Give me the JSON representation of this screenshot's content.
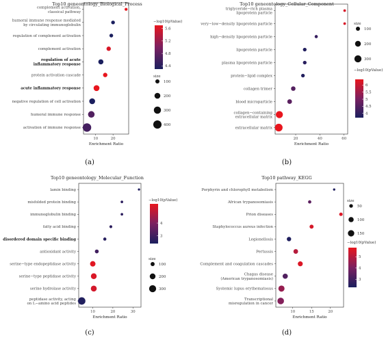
{
  "chart_data": [
    {
      "type": "scatter",
      "title": "Top10 geneontology_Biological_Process",
      "xlabel": "Enrichment Ratio",
      "caption": "(a)",
      "xlim": [
        3,
        29
      ],
      "xticks": [
        10,
        20
      ],
      "categories": [
        "complement activation, classical pathway",
        "humoral immune response mediated by circulating immunoglobulin",
        "regulation of complement activation",
        "complement activation",
        "regulation of acute inflammatory response",
        "protein activation cascade",
        "acute inflammatory response",
        "negative regulation of cell activation",
        "humoral immune response",
        "activation of immune response"
      ],
      "bold_categories": [
        "regulation of acute inflammatory response",
        "acute inflammatory response"
      ],
      "x": [
        27.5,
        20.0,
        19.0,
        17.5,
        13.0,
        15.5,
        10.5,
        8.0,
        7.5,
        5.0
      ],
      "size": [
        50,
        80,
        80,
        110,
        150,
        110,
        200,
        200,
        250,
        420
      ],
      "color": [
        5.7,
        4.2,
        4.3,
        5.6,
        4.3,
        5.7,
        5.7,
        4.3,
        4.7,
        4.6
      ],
      "color_label": "−log10(pValue)",
      "color_range": [
        4.3,
        5.7
      ],
      "color_ticks": [
        4.4,
        4.8,
        5.2,
        5.6
      ],
      "size_label": "size",
      "size_legend": [
        100,
        200,
        300,
        400
      ]
    },
    {
      "type": "scatter",
      "title": "Top10 geneontology_Cellular_Component",
      "xlabel": "Enrichment Ratio",
      "caption": "(b)",
      "xlim": [
        3,
        63
      ],
      "xticks": [
        20,
        40,
        60
      ],
      "categories": [
        "triglyceride−rich plasma lipoprotein particle",
        "very−low−density lipoprotein particle",
        "high−density lipoprotein particle",
        "lipoprotein particle",
        "plasma lipoprotein particle",
        "protein−lipid complex",
        "collagen trimer",
        "blood microparticle",
        "collagen−containing extracellular matrix",
        "extracellular matrix"
      ],
      "bold_categories": [],
      "x": [
        60.5,
        60.5,
        37.0,
        27.5,
        27.5,
        26.0,
        18.0,
        15.0,
        6.5,
        6.0
      ],
      "size": [
        40,
        40,
        60,
        80,
        80,
        80,
        120,
        130,
        300,
        350
      ],
      "color": [
        6.2,
        6.2,
        4.1,
        3.8,
        3.9,
        3.8,
        4.5,
        4.6,
        6.4,
        6.4
      ],
      "color_label": "−log10(pValue)",
      "color_range": [
        3.7,
        6.4
      ],
      "color_ticks": [
        4.0,
        4.5,
        5.0,
        5.5,
        6.0
      ],
      "size_label": "size",
      "size_legend": [
        100,
        200,
        300
      ]
    },
    {
      "type": "scatter",
      "title": "Top10 geneontology_Molecular_Function",
      "xlabel": "Enrichment Ratio",
      "caption": "(c)",
      "xlim": [
        3,
        34
      ],
      "xticks": [
        10,
        20,
        30
      ],
      "categories": [
        "lamin binding",
        "misfolded protein binding",
        "immunoglobulin binding",
        "fatty acid binding",
        "disordered domain specific binding",
        "antioxidant activity",
        "serine−type endopeptidase activity",
        "serine−type peptidase activity",
        "serine hydrolase activity",
        "peptidase activity, acting on L−amino acid peptides"
      ],
      "bold_categories": [
        "disordered domain specific binding"
      ],
      "x": [
        33.0,
        24.5,
        24.5,
        19.0,
        16.0,
        12.0,
        10.0,
        10.5,
        10.5,
        4.5
      ],
      "size": [
        30,
        40,
        40,
        50,
        60,
        90,
        180,
        200,
        210,
        330
      ],
      "color": [
        2.5,
        2.7,
        2.7,
        2.7,
        2.6,
        3.0,
        5.4,
        5.3,
        5.2,
        2.5
      ],
      "color_label": "−log10(pValue)",
      "color_range": [
        2.4,
        5.5
      ],
      "color_ticks": [
        3,
        4
      ],
      "size_label": "size",
      "size_legend": [
        100,
        200,
        300
      ]
    },
    {
      "type": "scatter",
      "title": "Top10 pathway_KEGG",
      "xlabel": "Enrichment Ratio",
      "caption": "(d)",
      "xlim": [
        5.5,
        23.5
      ],
      "xticks": [
        10,
        15,
        20
      ],
      "categories": [
        "Porphyrin and chlorophyll metabolism",
        "African trypanosomiasis",
        "Prion diseases",
        "Staphylococcus aureus infection",
        "Legionellosis",
        "Pertussis",
        "Complement and coagulation cascades",
        "Chagas disease (American trypanosomiasis)",
        "Systemic lupus erythematosus",
        "Transcriptional misregulation in cancer"
      ],
      "bold_categories": [],
      "x": [
        21.0,
        14.5,
        22.8,
        15.0,
        9.0,
        10.8,
        12.0,
        8.0,
        7.0,
        6.8
      ],
      "size": [
        20,
        40,
        45,
        60,
        70,
        80,
        90,
        100,
        140,
        160
      ],
      "color": [
        2.4,
        3.5,
        5.6,
        5.5,
        2.4,
        5.0,
        5.6,
        3.3,
        4.5,
        4.2
      ],
      "color_label": "−log10(pValue)",
      "color_range": [
        2.3,
        5.8
      ],
      "color_ticks": [
        3,
        4,
        5
      ],
      "size_label": "size",
      "size_legend": [
        50,
        100,
        150
      ]
    }
  ]
}
